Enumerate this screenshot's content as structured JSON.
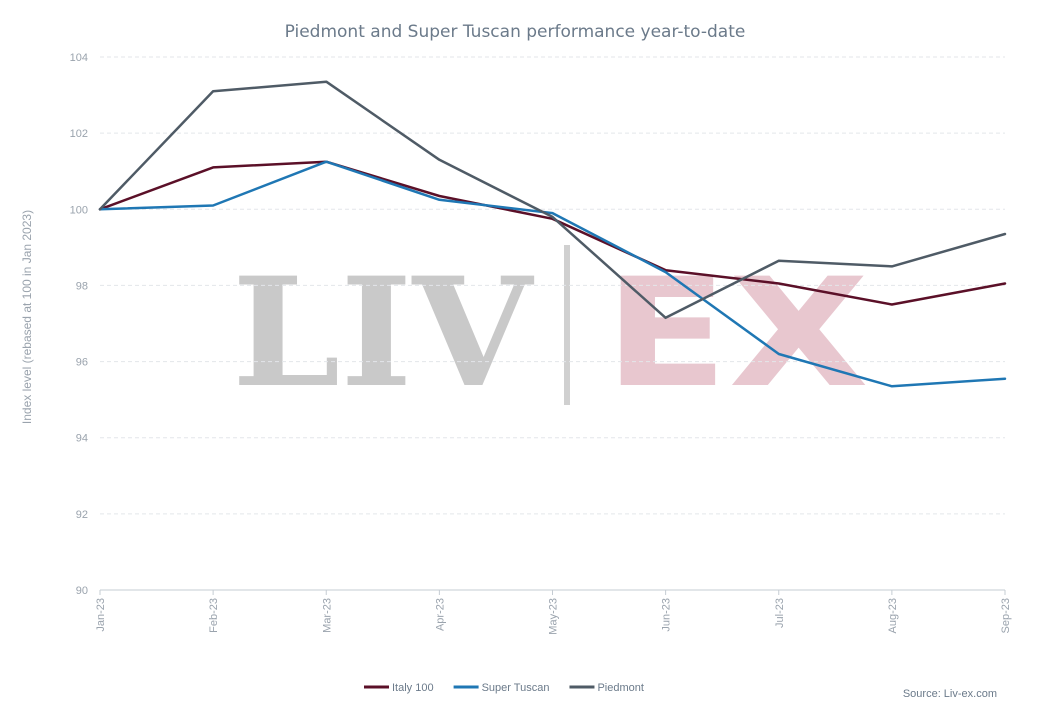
{
  "chart_data": {
    "type": "line",
    "title": "Piedmont and Super Tuscan performance year-to-date",
    "ylabel": "Index level (rebased at 100 in Jan 2023)",
    "xlabel": "",
    "categories": [
      "Jan-23",
      "Feb-23",
      "Mar-23",
      "Apr-23",
      "May-23",
      "Jun-23",
      "Jul-23",
      "Aug-23",
      "Sep-23"
    ],
    "ylim": [
      90,
      104
    ],
    "yticks": [
      90,
      92,
      94,
      96,
      98,
      100,
      102,
      104
    ],
    "grid": true,
    "legend_position": "bottom",
    "series": [
      {
        "name": "Italy 100",
        "color": "#5b1028",
        "values": [
          100.0,
          101.1,
          101.25,
          100.35,
          99.75,
          98.4,
          98.05,
          97.5,
          98.05
        ]
      },
      {
        "name": "Super Tuscan",
        "color": "#1f77b4",
        "values": [
          100.0,
          100.1,
          101.25,
          100.25,
          99.9,
          98.35,
          96.2,
          95.35,
          95.55
        ]
      },
      {
        "name": "Piedmont",
        "color": "#4f5b66",
        "values": [
          100.0,
          103.1,
          103.35,
          101.3,
          99.8,
          97.15,
          98.65,
          98.5,
          99.35
        ]
      }
    ],
    "source": "Source: Liv-ex.com",
    "watermark": {
      "left": "LIV",
      "right": "EX",
      "left_color": "#c9c9c9",
      "right_color": "#e8c7cf"
    }
  }
}
